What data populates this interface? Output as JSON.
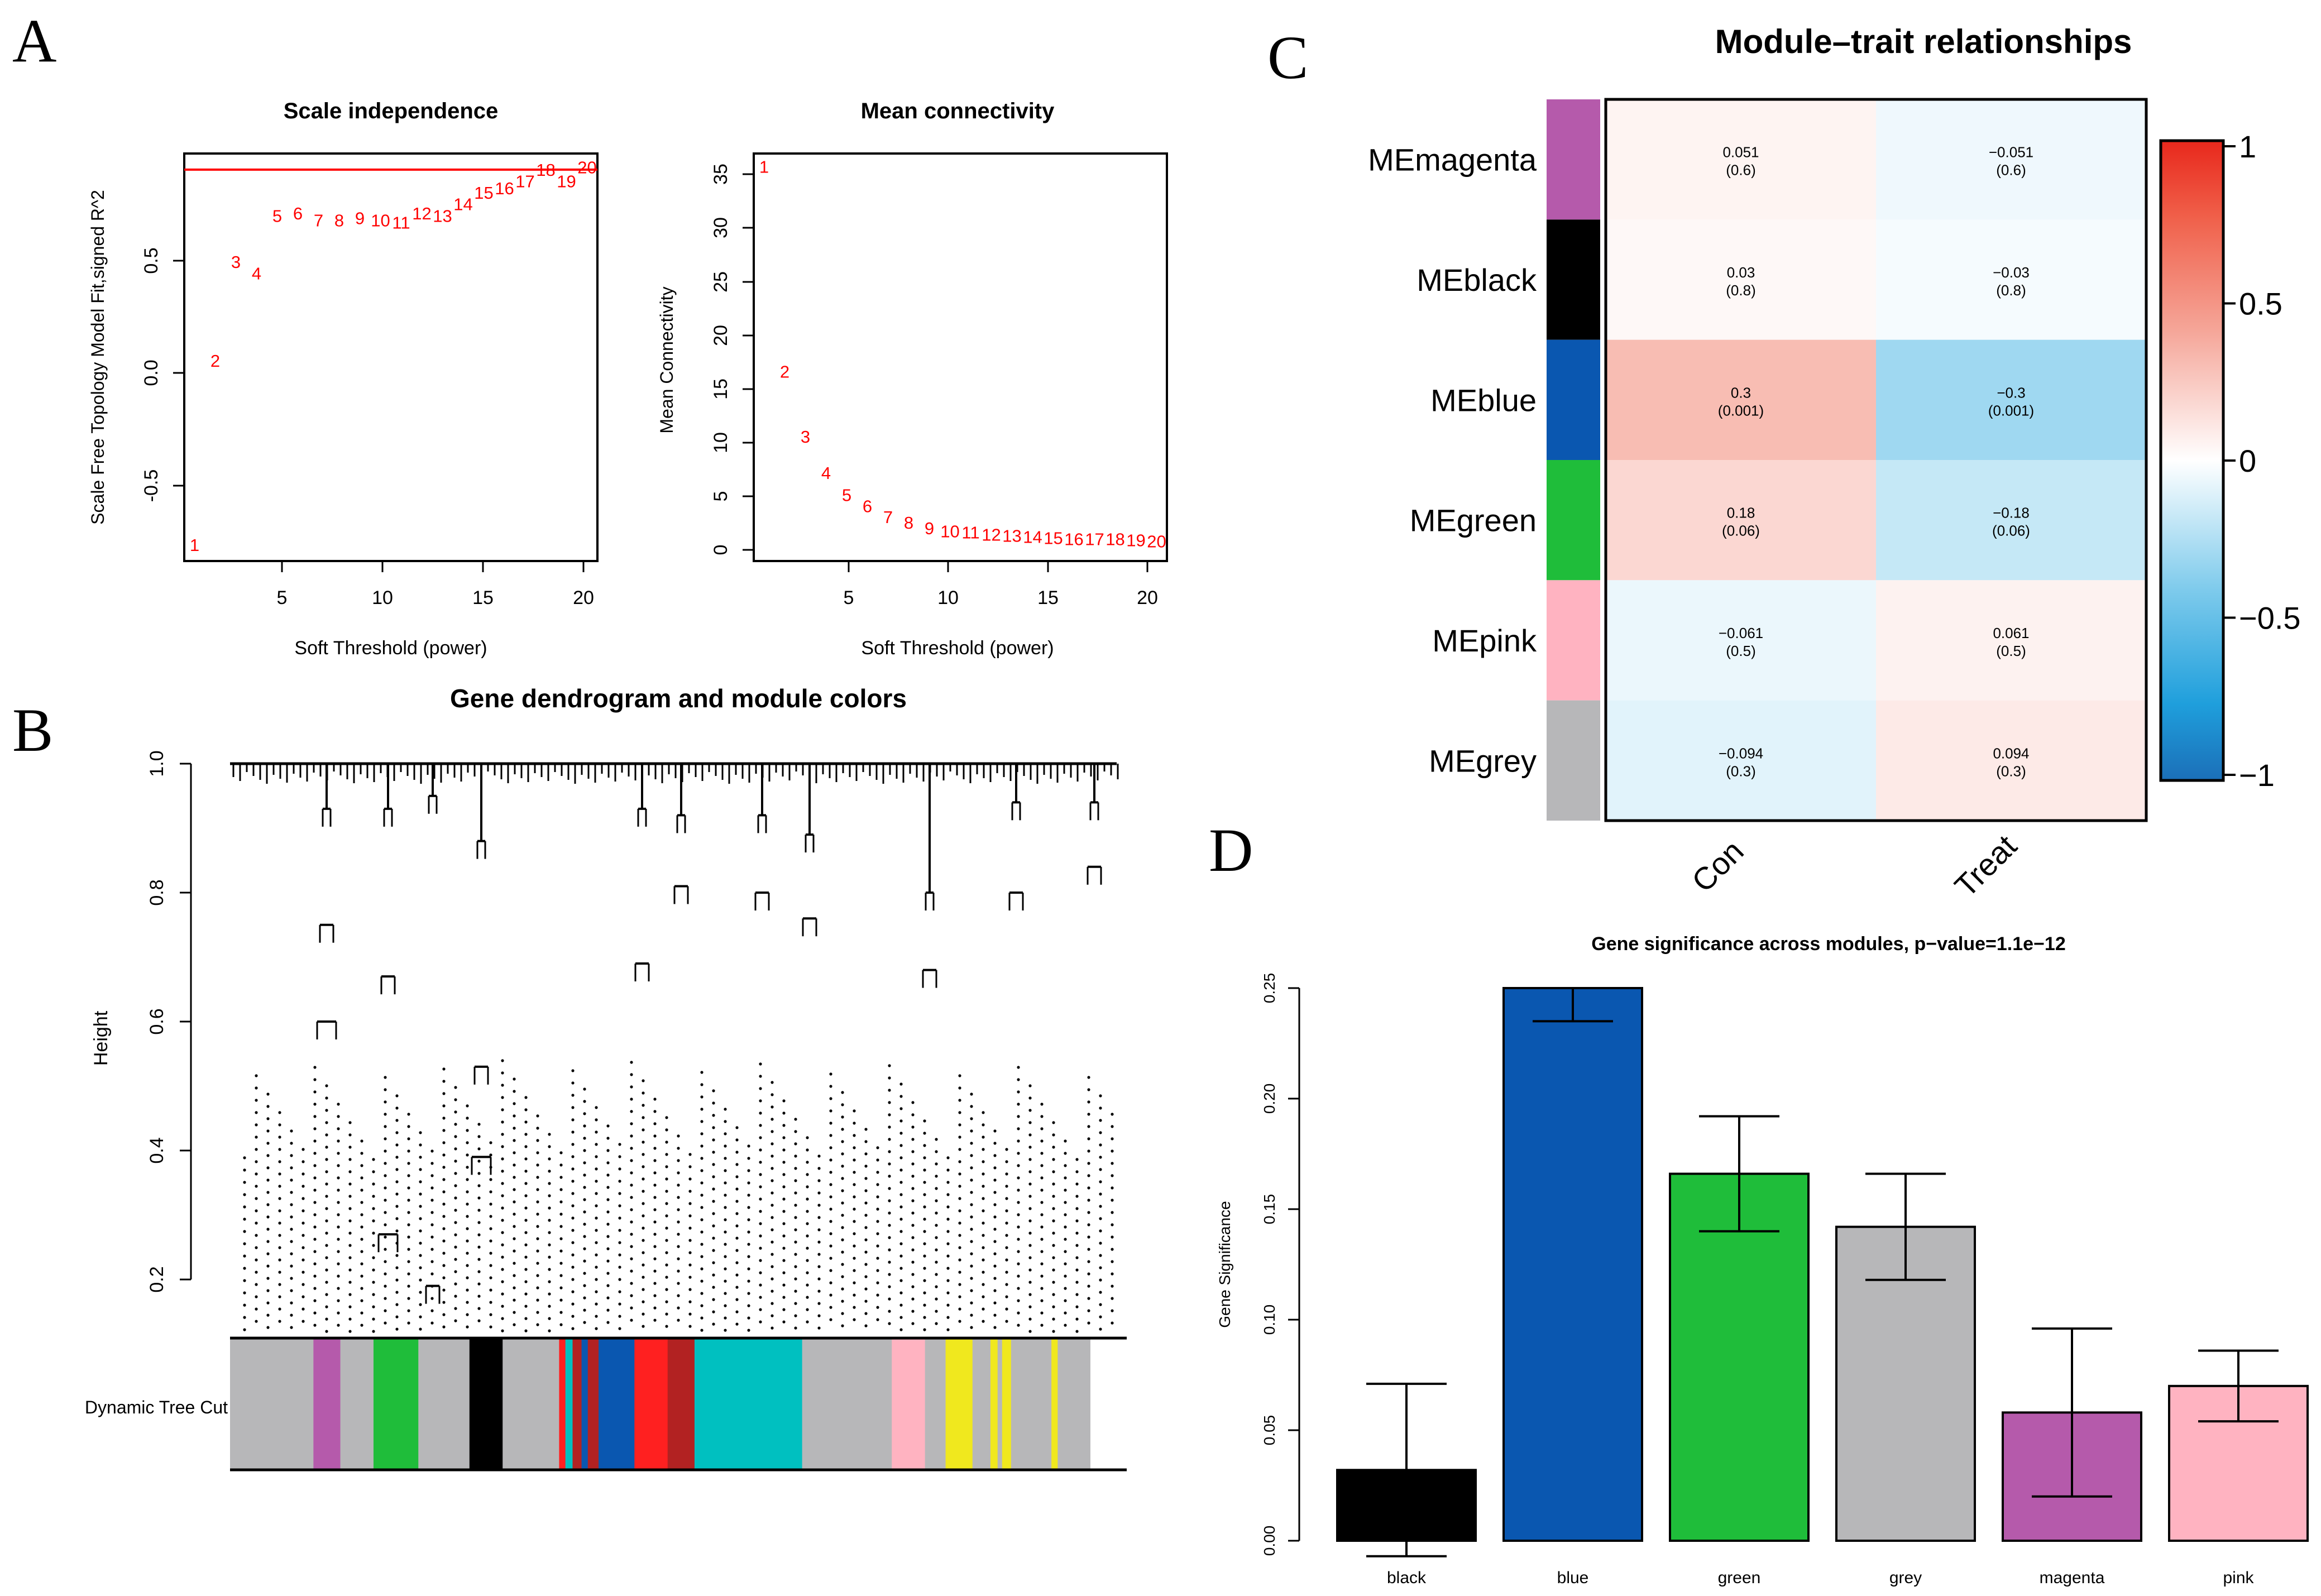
{
  "panel_labels": {
    "a": "A",
    "b": "B",
    "c": "C",
    "d": "D"
  },
  "chart_data": [
    {
      "type": "scatter",
      "panel": "A-left",
      "title": "Scale independence",
      "xlabel": "Soft Threshold (power)",
      "ylabel": "Scale Free Topology Model Fit,signed R^2",
      "xlim": [
        0.5,
        20.5
      ],
      "ylim": [
        -0.85,
        0.92
      ],
      "x_ticks": [
        "5",
        "10",
        "15",
        "20"
      ],
      "y_ticks": [
        "-0.5",
        "0.0",
        "0.5"
      ],
      "cutoff_line": 0.85,
      "cutoff_color": "#ff0000",
      "marker_color": "#ff0000",
      "x": [
        1,
        2,
        3,
        4,
        5,
        6,
        7,
        8,
        9,
        10,
        11,
        12,
        13,
        14,
        15,
        16,
        17,
        18,
        19,
        20
      ],
      "y": [
        -0.78,
        0.02,
        0.45,
        0.4,
        0.65,
        0.66,
        0.63,
        0.63,
        0.64,
        0.63,
        0.62,
        0.66,
        0.65,
        0.7,
        0.75,
        0.77,
        0.8,
        0.85,
        0.8,
        0.86
      ],
      "labels": [
        "1",
        "2",
        "3",
        "4",
        "5",
        "6",
        "7",
        "8",
        "9",
        "10",
        "11",
        "12",
        "13",
        "14",
        "15",
        "16",
        "17",
        "18",
        "19",
        "20"
      ]
    },
    {
      "type": "scatter",
      "panel": "A-right",
      "title": "Mean connectivity",
      "xlabel": "Soft Threshold (power)",
      "ylabel": "Mean Connectivity",
      "xlim": [
        0.5,
        20.5
      ],
      "ylim": [
        -1,
        36
      ],
      "x_ticks": [
        "5",
        "10",
        "15",
        "20"
      ],
      "y_ticks": [
        "0",
        "5",
        "10",
        "15",
        "20",
        "25",
        "30",
        "35"
      ],
      "marker_color": "#ff0000",
      "x": [
        1,
        2,
        3,
        4,
        5,
        6,
        7,
        8,
        9,
        10,
        11,
        12,
        13,
        14,
        15,
        16,
        17,
        18,
        19,
        20
      ],
      "y": [
        34.8,
        16.2,
        10.3,
        7,
        5,
        4,
        3,
        2.5,
        2,
        1.7,
        1.6,
        1.4,
        1.3,
        1.2,
        1.1,
        1,
        1,
        1,
        0.9,
        0.8
      ],
      "labels": [
        "1",
        "2",
        "3",
        "4",
        "5",
        "6",
        "7",
        "8",
        "9",
        "10",
        "11",
        "12",
        "13",
        "14",
        "15",
        "16",
        "17",
        "18",
        "19",
        "20"
      ]
    },
    {
      "type": "heatmap",
      "panel": "C",
      "title": "Module–trait relationships",
      "rows": [
        "MEmagenta",
        "MEblack",
        "MEblue",
        "MEgreen",
        "MEpink",
        "MEgrey"
      ],
      "row_colors": [
        "#b55aab",
        "#000000",
        "#0a57b0",
        "#1fbd3a",
        "#ffb3c1",
        "#b7b7b9"
      ],
      "columns": [
        "Con",
        "Treat"
      ],
      "correlations": [
        [
          0.051,
          -0.051
        ],
        [
          0.03,
          -0.03
        ],
        [
          0.3,
          -0.3
        ],
        [
          0.18,
          -0.18
        ],
        [
          -0.061,
          0.061
        ],
        [
          -0.094,
          0.094
        ]
      ],
      "cell_text": [
        [
          "0.051",
          "−0.051"
        ],
        [
          "0.03",
          "−0.03"
        ],
        [
          "0.3",
          "−0.3"
        ],
        [
          "0.18",
          "−0.18"
        ],
        [
          "−0.061",
          "0.061"
        ],
        [
          "−0.094",
          "0.094"
        ]
      ],
      "pvalues": [
        [
          "(0.6)",
          "(0.6)"
        ],
        [
          "(0.8)",
          "(0.8)"
        ],
        [
          "(0.001)",
          "(0.001)"
        ],
        [
          "(0.06)",
          "(0.06)"
        ],
        [
          "(0.5)",
          "(0.5)"
        ],
        [
          "(0.3)",
          "(0.3)"
        ]
      ],
      "colorbar_ticks": [
        "1",
        "0.5",
        "0",
        "−0.5",
        "−1"
      ],
      "colorbar_values": [
        1,
        0.5,
        0,
        -0.5,
        -1
      ],
      "colorbar_range": [
        -1,
        1
      ]
    },
    {
      "type": "bar",
      "panel": "D",
      "title": "Gene significance across modules, p−value=1.1e−12",
      "xlabel": "",
      "ylabel": "Gene Significance",
      "categories": [
        "black",
        "blue",
        "green",
        "grey",
        "magenta",
        "pink"
      ],
      "values": [
        0.032,
        0.25,
        0.166,
        0.142,
        0.058,
        0.07
      ],
      "error": [
        0.039,
        0.015,
        0.026,
        0.024,
        0.038,
        0.016
      ],
      "colors": [
        "#000000",
        "#0a57b0",
        "#1fbd3a",
        "#b7b7b9",
        "#b55aab",
        "#ffb3c1"
      ],
      "ylim": [
        0,
        0.25
      ],
      "y_ticks": [
        "0.00",
        "0.05",
        "0.10",
        "0.15",
        "0.20",
        "0.25"
      ]
    },
    {
      "type": "dendrogram",
      "panel": "B",
      "title": "Gene dendrogram and module colors",
      "ylabel": "Height",
      "ylim": [
        0.15,
        1.0
      ],
      "y_ticks": [
        "0.2",
        "0.4",
        "0.6",
        "0.8",
        "1.0"
      ],
      "color_bar_label": "Dynamic Tree Cut",
      "merge_heights": [
        0.6,
        0.27,
        0.19,
        0.39,
        0.68,
        0.81,
        0.89,
        0.87,
        0.8,
        0.8,
        0.84,
        0.72,
        0.85,
        0.8,
        0.68,
        0.82,
        0.88,
        0.92
      ],
      "color_segments": [
        {
          "color": "#b7b7b9",
          "fraction": 0.093
        },
        {
          "color": "#b55aab",
          "fraction": 0.03
        },
        {
          "color": "#b7b7b9",
          "fraction": 0.037
        },
        {
          "color": "#1fbd3a",
          "fraction": 0.05
        },
        {
          "color": "#b7b7b9",
          "fraction": 0.057
        },
        {
          "color": "#000000",
          "fraction": 0.037
        },
        {
          "color": "#b7b7b9",
          "fraction": 0.063
        },
        {
          "color": "#ff2020",
          "fraction": 0.007
        },
        {
          "color": "#00c0c0",
          "fraction": 0.008
        },
        {
          "color": "#b22222",
          "fraction": 0.01
        },
        {
          "color": "#0a57b0",
          "fraction": 0.007
        },
        {
          "color": "#b22222",
          "fraction": 0.012
        },
        {
          "color": "#0a57b0",
          "fraction": 0.04
        },
        {
          "color": "#ff2020",
          "fraction": 0.037
        },
        {
          "color": "#b22222",
          "fraction": 0.03
        },
        {
          "color": "#00c0c0",
          "fraction": 0.12
        },
        {
          "color": "#b7b7b9",
          "fraction": 0.1
        },
        {
          "color": "#ffb3c1",
          "fraction": 0.037
        },
        {
          "color": "#b7b7b9",
          "fraction": 0.023
        },
        {
          "color": "#f0e81e",
          "fraction": 0.03
        },
        {
          "color": "#b7b7b9",
          "fraction": 0.02
        },
        {
          "color": "#f0e81e",
          "fraction": 0.008
        },
        {
          "color": "#b7b7b9",
          "fraction": 0.005
        },
        {
          "color": "#f0e81e",
          "fraction": 0.01
        },
        {
          "color": "#b7b7b9",
          "fraction": 0.045
        },
        {
          "color": "#f0e81e",
          "fraction": 0.007
        },
        {
          "color": "#b7b7b9",
          "fraction": 0.036
        }
      ]
    }
  ]
}
